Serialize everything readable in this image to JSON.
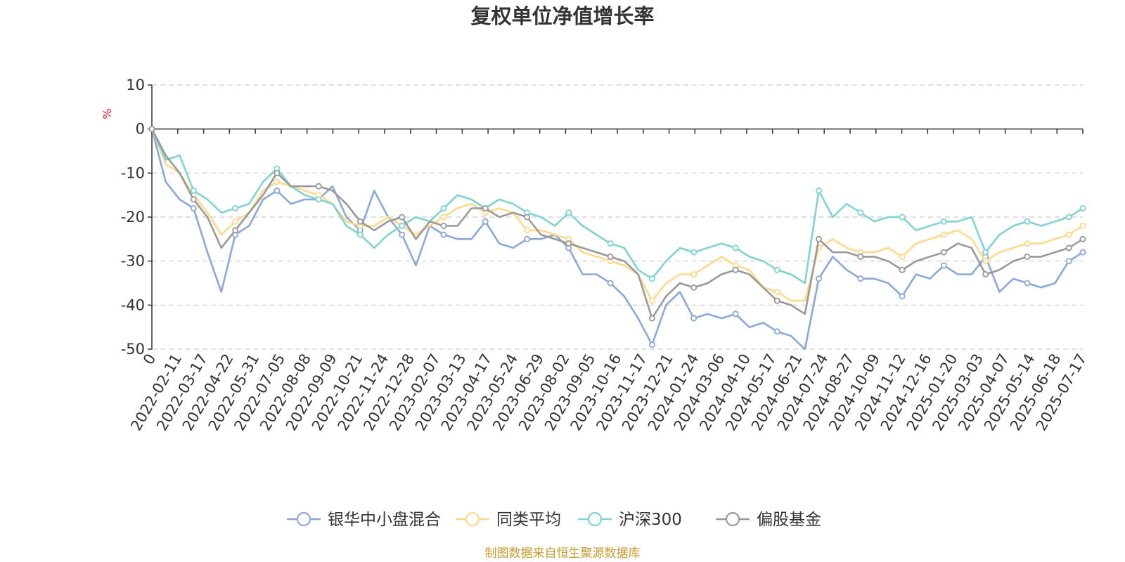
{
  "chart_data": {
    "type": "line",
    "title": "复权单位净值增长率",
    "ylabel": "%",
    "ylim": [
      -50,
      10
    ],
    "yticks": [
      10,
      0,
      -10,
      -20,
      -30,
      -40,
      -50
    ],
    "x_tick_labels": [
      "0",
      "2022-02-11",
      "2022-03-17",
      "2022-04-22",
      "2022-05-31",
      "2022-07-05",
      "2022-08-08",
      "2022-09-09",
      "2022-10-21",
      "2022-11-24",
      "2022-12-28",
      "2023-02-07",
      "2023-03-13",
      "2023-04-17",
      "2023-05-24",
      "2023-06-29",
      "2023-08-02",
      "2023-09-05",
      "2023-10-16",
      "2023-11-17",
      "2023-12-21",
      "2024-01-24",
      "2024-03-06",
      "2024-04-10",
      "2024-05-17",
      "2024-06-21",
      "2024-07-24",
      "2024-08-27",
      "2024-10-09",
      "2024-11-12",
      "2024-12-16",
      "2025-01-20",
      "2025-03-03",
      "2025-04-07",
      "2025-05-14",
      "2025-06-18",
      "2025-07-17"
    ],
    "grid": "horizontal-dashed",
    "legend_position": "bottom",
    "series": [
      {
        "name": "银华中小盘混合",
        "color": "#8aa8d8",
        "values": [
          0,
          -12,
          -16,
          -18,
          -28,
          -37,
          -24,
          -22,
          -16,
          -14,
          -17,
          -16,
          -16,
          -13,
          -20,
          -23,
          -14,
          -20,
          -24,
          -31,
          -22,
          -24,
          -25,
          -25,
          -21,
          -26,
          -27,
          -25,
          -25,
          -24,
          -27,
          -33,
          -33,
          -35,
          -38,
          -43,
          -49,
          -40,
          -37,
          -43,
          -42,
          -43,
          -42,
          -45,
          -44,
          -46,
          -47,
          -50,
          -34,
          -29,
          -32,
          -34,
          -34,
          -35,
          -38,
          -33,
          -34,
          -31,
          -33,
          -33,
          -29,
          -37,
          -34,
          -35,
          -36,
          -35,
          -30,
          -28
        ]
      },
      {
        "name": "同类平均",
        "color": "#ffd98a",
        "values": [
          0,
          -8,
          -10,
          -15,
          -19,
          -24,
          -21,
          -19,
          -14,
          -12,
          -13,
          -14,
          -15,
          -17,
          -21,
          -22,
          -22,
          -20,
          -22,
          -24,
          -22,
          -20,
          -18,
          -17,
          -19,
          -18,
          -19,
          -23,
          -23,
          -24,
          -25,
          -28,
          -29,
          -30,
          -31,
          -33,
          -39,
          -35,
          -33,
          -33,
          -31,
          -29,
          -31,
          -32,
          -36,
          -37,
          -39,
          -39,
          -27,
          -25,
          -27,
          -28,
          -28,
          -27,
          -29,
          -26,
          -25,
          -24,
          -23,
          -25,
          -30,
          -28,
          -27,
          -26,
          -26,
          -25,
          -24,
          -22
        ]
      },
      {
        "name": "沪深300",
        "color": "#7fd3d3",
        "values": [
          0,
          -7,
          -6,
          -14,
          -16,
          -19,
          -18,
          -17,
          -12,
          -9,
          -13,
          -15,
          -16,
          -17,
          -22,
          -24,
          -27,
          -24,
          -22,
          -20,
          -21,
          -18,
          -15,
          -16,
          -18,
          -16,
          -17,
          -19,
          -20,
          -22,
          -19,
          -22,
          -24,
          -26,
          -27,
          -32,
          -34,
          -30,
          -27,
          -28,
          -27,
          -26,
          -27,
          -29,
          -30,
          -32,
          -33,
          -35,
          -14,
          -20,
          -17,
          -19,
          -21,
          -20,
          -20,
          -23,
          -22,
          -21,
          -21,
          -20,
          -28,
          -24,
          -22,
          -21,
          -22,
          -21,
          -20,
          -18
        ]
      },
      {
        "name": "偏股基金",
        "color": "#999999",
        "values": [
          0,
          -6,
          -10,
          -16,
          -20,
          -27,
          -23,
          -19,
          -15,
          -10,
          -13,
          -13,
          -13,
          -14,
          -17,
          -21,
          -23,
          -21,
          -20,
          -25,
          -21,
          -22,
          -22,
          -18,
          -18,
          -20,
          -19,
          -20,
          -24,
          -25,
          -26,
          -27,
          -28,
          -29,
          -30,
          -33,
          -43,
          -38,
          -35,
          -36,
          -35,
          -33,
          -32,
          -33,
          -36,
          -39,
          -40,
          -42,
          -25,
          -28,
          -28,
          -29,
          -29,
          -30,
          -32,
          -30,
          -29,
          -28,
          -26,
          -27,
          -33,
          -32,
          -30,
          -29,
          -29,
          -28,
          -27,
          -25
        ]
      }
    ]
  },
  "legend": {
    "items": [
      {
        "label": "银华中小盘混合",
        "color": "#8aa8d8"
      },
      {
        "label": "同类平均",
        "color": "#ffd98a"
      },
      {
        "label": "沪深300",
        "color": "#7fd3d3"
      },
      {
        "label": "偏股基金",
        "color": "#999999"
      }
    ]
  },
  "source": "制图数据来自恒生聚源数据库"
}
